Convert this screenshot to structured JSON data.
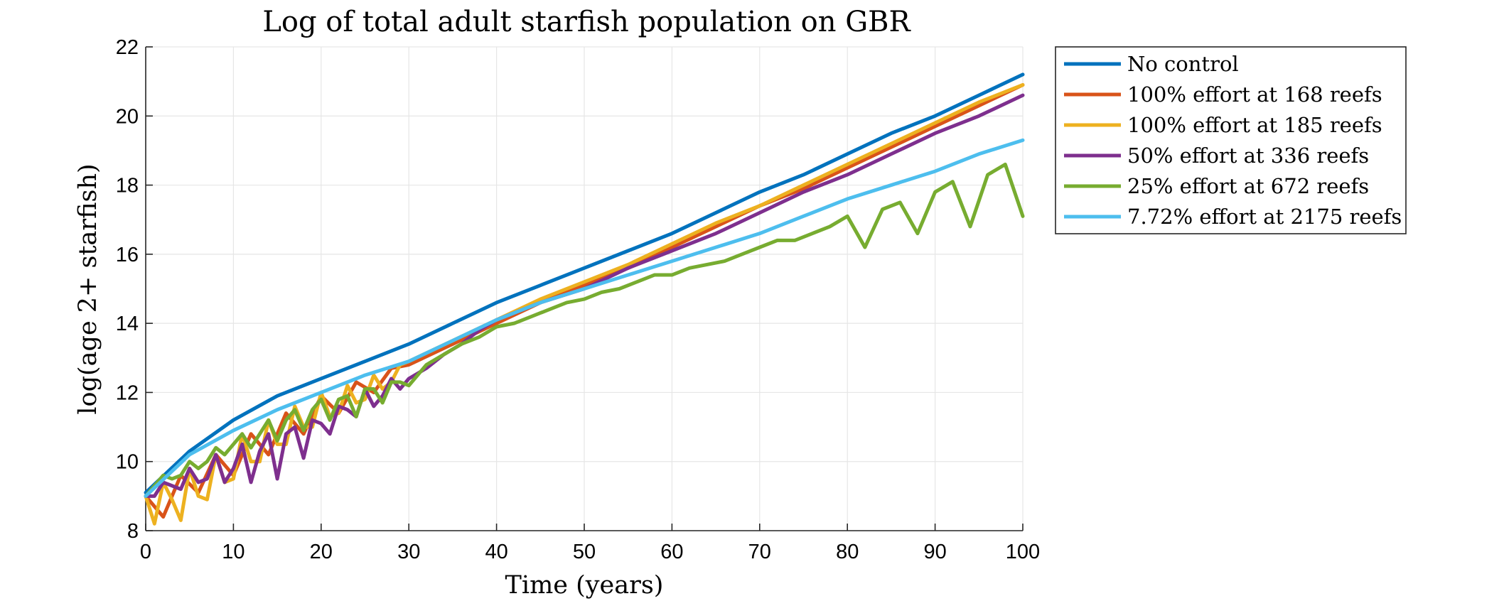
{
  "chart_data": {
    "type": "line",
    "title": "Log of total adult starfish population on GBR",
    "xlabel": "Time (years)",
    "ylabel": "log(age 2+ starfish)",
    "xlim": [
      0,
      100
    ],
    "ylim": [
      8,
      22
    ],
    "xticks": [
      0,
      10,
      20,
      30,
      40,
      50,
      60,
      70,
      80,
      90,
      100
    ],
    "yticks": [
      8,
      10,
      12,
      14,
      16,
      18,
      20,
      22
    ],
    "xtick_labels": [
      "0",
      "10",
      "20",
      "30",
      "40",
      "50",
      "60",
      "70",
      "80",
      "90",
      "100"
    ],
    "ytick_labels": [
      "8",
      "10",
      "12",
      "14",
      "16",
      "18",
      "20",
      "22"
    ],
    "grid": true,
    "legend_position": "outside-top-right",
    "series": [
      {
        "name": "No control",
        "color": "#0072BD",
        "x": [
          0,
          5,
          10,
          15,
          20,
          25,
          30,
          35,
          40,
          45,
          50,
          55,
          60,
          65,
          70,
          75,
          80,
          85,
          90,
          95,
          100
        ],
        "y": [
          9.1,
          10.3,
          11.2,
          11.9,
          12.4,
          12.9,
          13.4,
          14.0,
          14.6,
          15.1,
          15.6,
          16.1,
          16.6,
          17.2,
          17.8,
          18.3,
          18.9,
          19.5,
          20.0,
          20.6,
          21.2
        ]
      },
      {
        "name": "100% effort at 168 reefs",
        "color": "#D95319",
        "x": [
          0,
          2,
          4,
          6,
          8,
          10,
          12,
          14,
          16,
          18,
          20,
          22,
          24,
          26,
          28,
          30,
          35,
          40,
          45,
          50,
          55,
          60,
          65,
          70,
          75,
          80,
          85,
          90,
          95,
          100
        ],
        "y": [
          9.0,
          8.4,
          9.6,
          9.1,
          10.2,
          9.6,
          10.8,
          10.2,
          11.4,
          10.8,
          11.9,
          11.4,
          12.3,
          12.0,
          12.7,
          12.8,
          13.4,
          14.0,
          14.6,
          15.1,
          15.6,
          16.2,
          16.8,
          17.4,
          17.9,
          18.5,
          19.1,
          19.7,
          20.3,
          20.9
        ]
      },
      {
        "name": "100% effort at 185 reefs",
        "color": "#EDB120",
        "x": [
          0,
          1,
          2,
          3,
          4,
          5,
          6,
          7,
          8,
          9,
          10,
          11,
          12,
          13,
          14,
          15,
          16,
          17,
          18,
          19,
          20,
          21,
          22,
          23,
          24,
          25,
          26,
          27,
          28,
          29,
          30,
          35,
          40,
          45,
          50,
          55,
          60,
          65,
          70,
          75,
          80,
          85,
          90,
          95,
          100
        ],
        "y": [
          9.0,
          8.2,
          9.4,
          8.9,
          8.3,
          9.8,
          9.0,
          8.9,
          10.2,
          9.4,
          9.5,
          10.8,
          10.0,
          10.0,
          11.2,
          10.5,
          10.5,
          11.6,
          11.0,
          11.0,
          12.0,
          11.3,
          11.4,
          12.2,
          11.7,
          11.8,
          12.5,
          12.1,
          12.3,
          12.8,
          12.9,
          13.5,
          14.1,
          14.7,
          15.2,
          15.7,
          16.3,
          16.9,
          17.4,
          18.0,
          18.6,
          19.2,
          19.8,
          20.4,
          20.9
        ]
      },
      {
        "name": "50% effort at 336 reefs",
        "color": "#7E2F8E",
        "x": [
          0,
          1,
          2,
          3,
          4,
          5,
          6,
          7,
          8,
          9,
          10,
          11,
          12,
          13,
          14,
          15,
          16,
          17,
          18,
          19,
          20,
          21,
          22,
          23,
          24,
          25,
          26,
          27,
          28,
          29,
          30,
          32,
          34,
          36,
          38,
          40,
          45,
          50,
          55,
          60,
          65,
          70,
          75,
          80,
          85,
          90,
          95,
          100
        ],
        "y": [
          9.0,
          9.0,
          9.4,
          9.3,
          9.2,
          9.8,
          9.4,
          9.5,
          10.2,
          9.4,
          9.8,
          10.5,
          9.4,
          10.3,
          10.8,
          9.5,
          10.8,
          11.0,
          10.1,
          11.2,
          11.1,
          10.8,
          11.6,
          11.5,
          11.3,
          12.1,
          11.6,
          11.9,
          12.4,
          12.1,
          12.4,
          12.7,
          13.1,
          13.4,
          13.8,
          14.1,
          14.6,
          15.0,
          15.6,
          16.1,
          16.6,
          17.2,
          17.8,
          18.3,
          18.9,
          19.5,
          20.0,
          20.6
        ]
      },
      {
        "name": "25% effort at 672 reefs",
        "color": "#77AC30",
        "x": [
          0,
          1,
          2,
          3,
          4,
          5,
          6,
          7,
          8,
          9,
          10,
          11,
          12,
          13,
          14,
          15,
          16,
          17,
          18,
          19,
          20,
          21,
          22,
          23,
          24,
          25,
          26,
          27,
          28,
          29,
          30,
          32,
          34,
          36,
          38,
          40,
          42,
          44,
          46,
          48,
          50,
          52,
          54,
          56,
          58,
          60,
          62,
          64,
          66,
          68,
          70,
          72,
          74,
          76,
          78,
          80,
          82,
          84,
          86,
          88,
          90,
          92,
          94,
          96,
          98,
          100
        ],
        "y": [
          9.0,
          9.3,
          9.6,
          9.5,
          9.6,
          10.0,
          9.8,
          10.0,
          10.4,
          10.2,
          10.5,
          10.8,
          10.4,
          10.8,
          11.2,
          10.6,
          11.2,
          11.5,
          10.9,
          11.5,
          11.8,
          11.2,
          11.8,
          11.9,
          11.3,
          12.1,
          12.1,
          11.7,
          12.3,
          12.3,
          12.2,
          12.8,
          13.1,
          13.4,
          13.6,
          13.9,
          14.0,
          14.2,
          14.4,
          14.6,
          14.7,
          14.9,
          15.0,
          15.2,
          15.4,
          15.4,
          15.6,
          15.7,
          15.8,
          16.0,
          16.2,
          16.4,
          16.4,
          16.6,
          16.8,
          17.1,
          16.2,
          17.3,
          17.5,
          16.6,
          17.8,
          18.1,
          16.8,
          18.3,
          18.6,
          17.1
        ]
      },
      {
        "name": "7.72% effort at 2175 reefs",
        "color": "#4DBEEE",
        "x": [
          0,
          5,
          10,
          15,
          20,
          25,
          30,
          35,
          40,
          45,
          50,
          55,
          60,
          65,
          70,
          75,
          80,
          85,
          90,
          95,
          100
        ],
        "y": [
          9.0,
          10.2,
          10.9,
          11.5,
          12.0,
          12.5,
          12.9,
          13.5,
          14.1,
          14.6,
          15.0,
          15.4,
          15.8,
          16.2,
          16.6,
          17.1,
          17.6,
          18.0,
          18.4,
          18.9,
          19.3
        ]
      }
    ]
  }
}
